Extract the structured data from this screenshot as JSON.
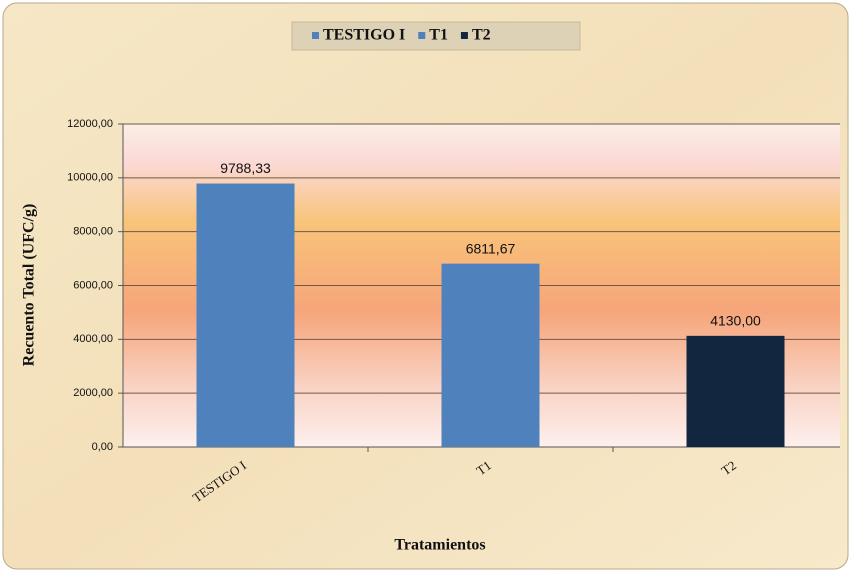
{
  "chart_data": {
    "type": "bar",
    "categories": [
      "TESTIGO I",
      "T1",
      "T2"
    ],
    "values": [
      9788.33,
      6811.67,
      4130.0
    ],
    "value_labels": [
      "9788,33",
      "6811,67",
      "4130,00"
    ],
    "colors": [
      "#4f81bd",
      "#4f81bd",
      "#132640"
    ],
    "x_label": "Tratamientos",
    "y_label": "Recuento Total (UFC/g)",
    "ylim": [
      0,
      12000
    ],
    "yticks": [
      {
        "value": 0,
        "label": "0,00"
      },
      {
        "value": 2000,
        "label": "2000,00"
      },
      {
        "value": 4000,
        "label": "4000,00"
      },
      {
        "value": 6000,
        "label": "6000,00"
      },
      {
        "value": 8000,
        "label": "8000,00"
      },
      {
        "value": 10000,
        "label": "10000,00"
      },
      {
        "value": 12000,
        "label": "12000,00"
      }
    ],
    "grid": true,
    "legend": "top"
  }
}
